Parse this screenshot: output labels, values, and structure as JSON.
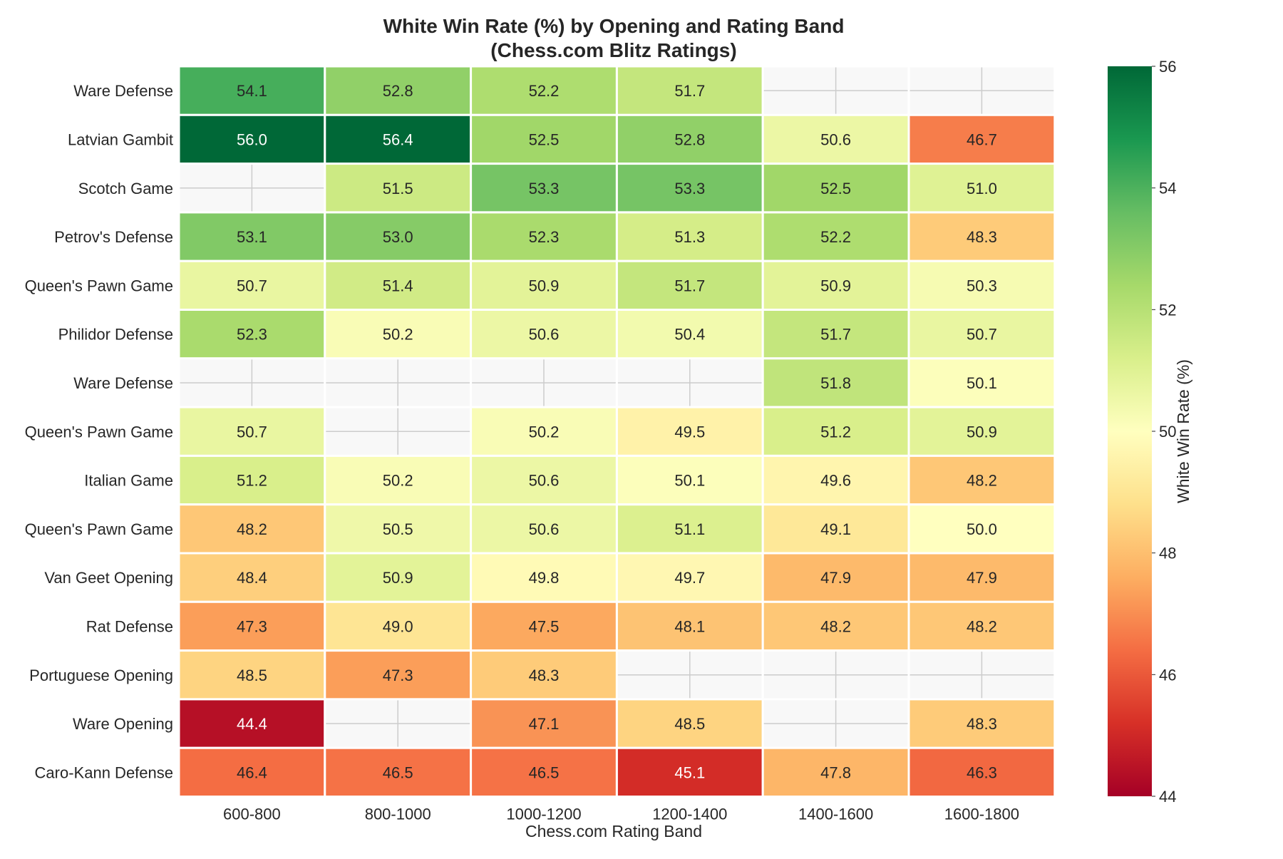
{
  "chart_data": {
    "type": "heatmap",
    "title": "White Win Rate (%) by Opening and Rating Band",
    "subtitle": "(Chess.com Blitz Ratings)",
    "xlabel": "Chess.com Rating Band",
    "ylabel": "",
    "colorbar_label": "White Win Rate (%)",
    "colorbar_range": [
      44,
      56
    ],
    "colorbar_ticks": [
      "44",
      "46",
      "48",
      "50",
      "52",
      "54",
      "56"
    ],
    "colormap": "RdYlGn",
    "missing_color": "#f8f8f8",
    "grid": true,
    "columns": [
      "600-800",
      "800-1000",
      "1000-1200",
      "1200-1400",
      "1400-1600",
      "1600-1800"
    ],
    "rows": [
      "Ware Defense",
      "Latvian Gambit",
      "Scotch Game",
      "Petrov's Defense",
      "Queen's Pawn Game",
      "Philidor Defense",
      "Ware Defense",
      "Queen's Pawn Game",
      "Italian Game",
      "Queen's Pawn Game",
      "Van Geet Opening",
      "Rat Defense",
      "Portuguese Opening",
      "Ware Opening",
      "Caro-Kann Defense"
    ],
    "values": [
      [
        54.1,
        52.8,
        52.2,
        51.7,
        null,
        null
      ],
      [
        56.0,
        56.4,
        52.5,
        52.8,
        50.6,
        46.7
      ],
      [
        null,
        51.5,
        53.3,
        53.3,
        52.5,
        51.0
      ],
      [
        53.1,
        53.0,
        52.3,
        51.3,
        52.2,
        48.3
      ],
      [
        50.7,
        51.4,
        50.9,
        51.7,
        50.9,
        50.3
      ],
      [
        52.3,
        50.2,
        50.6,
        50.4,
        51.7,
        50.7
      ],
      [
        null,
        null,
        null,
        null,
        51.8,
        50.1
      ],
      [
        50.7,
        null,
        50.2,
        49.5,
        51.2,
        50.9
      ],
      [
        51.2,
        50.2,
        50.6,
        50.1,
        49.6,
        48.2
      ],
      [
        48.2,
        50.5,
        50.6,
        51.1,
        49.1,
        50.0
      ],
      [
        48.4,
        50.9,
        49.8,
        49.7,
        47.9,
        47.9
      ],
      [
        47.3,
        49.0,
        47.5,
        48.1,
        48.2,
        48.2
      ],
      [
        48.5,
        47.3,
        48.3,
        null,
        null,
        null
      ],
      [
        44.4,
        null,
        47.1,
        48.5,
        null,
        48.3
      ],
      [
        46.4,
        46.5,
        46.5,
        45.1,
        47.8,
        46.3
      ]
    ]
  }
}
